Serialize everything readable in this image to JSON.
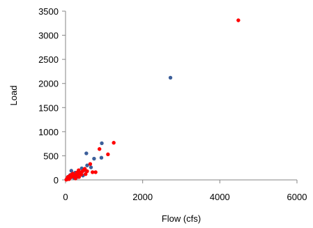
{
  "chart_data": {
    "type": "scatter",
    "title": "",
    "xlabel": "Flow (cfs)",
    "ylabel": "Load",
    "xlim": [
      0,
      6000
    ],
    "ylim": [
      0,
      3500
    ],
    "xticks": [
      "0",
      "2000",
      "4000",
      "6000"
    ],
    "yticks": [
      "0",
      "500",
      "1000",
      "1500",
      "2000",
      "2500",
      "3000",
      "3500"
    ],
    "grid": false,
    "legend": "none",
    "series": [
      {
        "color": "#3c5f9a",
        "points": [
          [
            2720,
            2120
          ],
          [
            940,
            760
          ],
          [
            540,
            550
          ],
          [
            930,
            460
          ],
          [
            740,
            440
          ],
          [
            560,
            300
          ],
          [
            660,
            260
          ],
          [
            420,
            240
          ],
          [
            510,
            200
          ],
          [
            150,
            190
          ],
          [
            250,
            150
          ],
          [
            360,
            140
          ],
          [
            200,
            120
          ],
          [
            300,
            100
          ],
          [
            120,
            100
          ],
          [
            80,
            70
          ],
          [
            450,
            90
          ],
          [
            180,
            60
          ],
          [
            60,
            40
          ],
          [
            40,
            20
          ],
          [
            260,
            80
          ],
          [
            330,
            60
          ],
          [
            100,
            30
          ],
          [
            220,
            40
          ]
        ]
      },
      {
        "color": "#ff0000",
        "points": [
          [
            4480,
            3310
          ],
          [
            1250,
            770
          ],
          [
            1100,
            530
          ],
          [
            880,
            640
          ],
          [
            640,
            330
          ],
          [
            700,
            160
          ],
          [
            780,
            160
          ],
          [
            500,
            230
          ],
          [
            470,
            200
          ],
          [
            430,
            170
          ],
          [
            380,
            150
          ],
          [
            320,
            120
          ],
          [
            280,
            100
          ],
          [
            240,
            90
          ],
          [
            200,
            80
          ],
          [
            160,
            70
          ],
          [
            130,
            50
          ],
          [
            100,
            40
          ],
          [
            70,
            30
          ],
          [
            50,
            20
          ],
          [
            30,
            10
          ],
          [
            350,
            60
          ],
          [
            410,
            110
          ],
          [
            190,
            130
          ],
          [
            230,
            60
          ],
          [
            290,
            150
          ],
          [
            150,
            110
          ],
          [
            120,
            90
          ],
          [
            60,
            60
          ],
          [
            20,
            5
          ],
          [
            90,
            15
          ],
          [
            520,
            120
          ],
          [
            560,
            180
          ],
          [
            340,
            200
          ],
          [
            260,
            30
          ]
        ]
      }
    ]
  }
}
